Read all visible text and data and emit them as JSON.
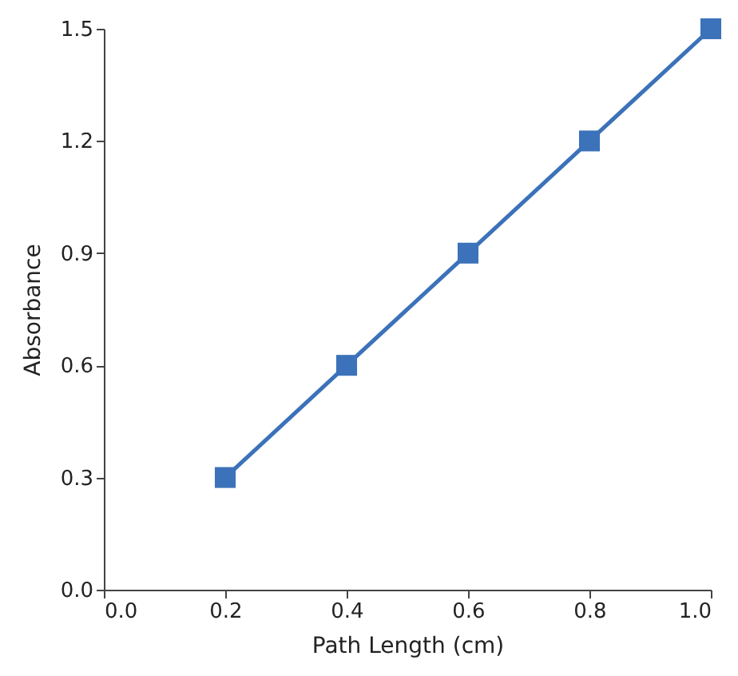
{
  "chart_data": {
    "type": "line",
    "xlabel": "Path Length (cm)",
    "ylabel": "Absorbance",
    "x": [
      0.2,
      0.4,
      0.6,
      0.8,
      1.0
    ],
    "series": [
      {
        "color": "#3b72b9",
        "values": [
          0.3,
          0.6,
          0.9,
          1.2,
          1.5
        ]
      }
    ],
    "xlim": [
      0,
      1
    ],
    "xticks": [
      {
        "value": 0,
        "label": "0.0"
      },
      0.2,
      0.4,
      0.6,
      0.8,
      {
        "value": 1,
        "label": "1.0"
      }
    ],
    "ylim": [
      0,
      1.5
    ],
    "yticks": [
      {
        "value": 0,
        "label": "0.0"
      },
      0.3,
      0.6,
      0.9,
      1.2,
      1.5
    ],
    "grid": false,
    "marker": "square",
    "line_style": "solid"
  }
}
